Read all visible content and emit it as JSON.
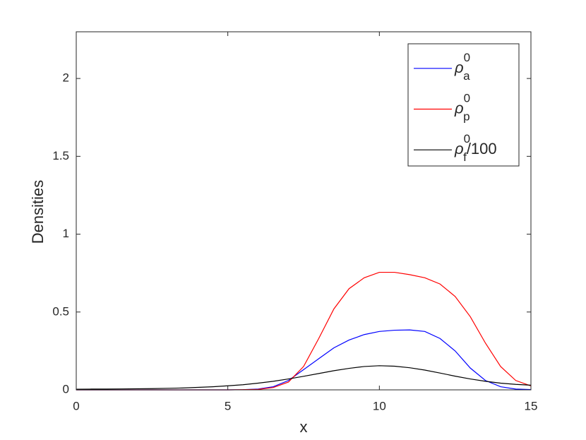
{
  "chart_data": {
    "type": "line",
    "xlabel": "x",
    "ylabel": "Densities",
    "x": [
      0,
      0.5,
      1,
      1.5,
      2,
      2.5,
      3,
      3.5,
      4,
      4.5,
      5,
      5.5,
      6,
      6.5,
      7,
      7.5,
      8,
      8.5,
      9,
      9.5,
      10,
      10.5,
      11,
      11.5,
      12,
      12.5,
      13,
      13.5,
      14,
      14.5,
      15
    ],
    "series": [
      {
        "name": "ρ_a^0",
        "color": "#0000ff",
        "values": [
          0,
          0,
          0,
          0,
          0,
          0,
          0,
          0,
          0,
          0,
          0,
          0.001,
          0.005,
          0.02,
          0.06,
          0.13,
          0.2,
          0.27,
          0.32,
          0.355,
          0.375,
          0.383,
          0.385,
          0.375,
          0.33,
          0.25,
          0.14,
          0.06,
          0.02,
          0.005,
          0.002
        ]
      },
      {
        "name": "ρ_p^0",
        "color": "#ff0000",
        "values": [
          0,
          0,
          0,
          0,
          0,
          0,
          0,
          0,
          0,
          0,
          0,
          0.001,
          0.003,
          0.015,
          0.05,
          0.15,
          0.33,
          0.52,
          0.65,
          0.72,
          0.755,
          0.755,
          0.74,
          0.72,
          0.68,
          0.6,
          0.47,
          0.3,
          0.15,
          0.06,
          0.025
        ]
      },
      {
        "name": "ρ_f^0/100",
        "color": "#000000",
        "values": [
          0.004,
          0.005,
          0.005,
          0.006,
          0.007,
          0.008,
          0.01,
          0.012,
          0.016,
          0.02,
          0.026,
          0.033,
          0.043,
          0.055,
          0.07,
          0.087,
          0.105,
          0.123,
          0.138,
          0.15,
          0.155,
          0.152,
          0.142,
          0.127,
          0.108,
          0.088,
          0.07,
          0.055,
          0.043,
          0.035,
          0.03
        ]
      }
    ],
    "xlim": [
      0,
      15
    ],
    "xticks": [
      0,
      5,
      10,
      15
    ],
    "ylim": [
      0,
      2.3
    ],
    "yticks": [
      0,
      0.5,
      1,
      1.5,
      2
    ],
    "grid": false,
    "legend": "northeast"
  }
}
